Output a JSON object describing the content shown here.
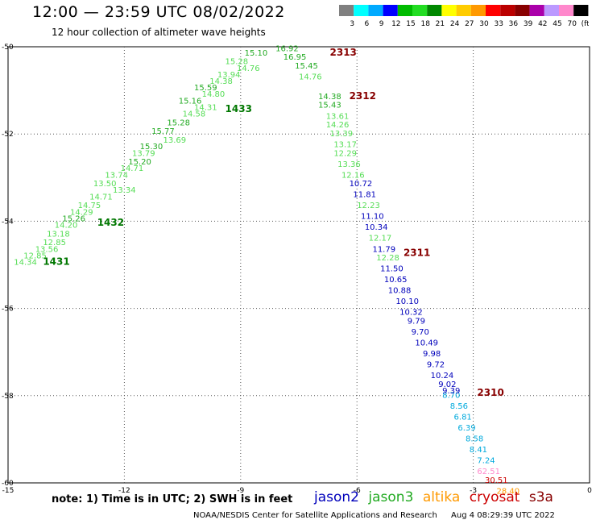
{
  "header": {
    "title": "12:00 — 23:59 UTC 08/02/2022",
    "subtitle": "12 hour collection of altimeter wave heights"
  },
  "colorbar": {
    "colors": [
      "#808080",
      "#00ffff",
      "#00aaff",
      "#0000ff",
      "#00bb00",
      "#22dd22",
      "#008800",
      "#ffff00",
      "#ffcc00",
      "#ff9900",
      "#ff0000",
      "#bb0000",
      "#880000",
      "#aa00aa",
      "#bb99ff",
      "#ff88cc",
      "#000000"
    ],
    "labels": [
      "3",
      "6",
      "9",
      "12",
      "15",
      "18",
      "21",
      "24",
      "27",
      "30",
      "33",
      "36",
      "39",
      "42",
      "45",
      "70",
      "(ft)"
    ]
  },
  "axes": {
    "y_labels": [
      "-50",
      "-52",
      "-54",
      "-56",
      "-58",
      "-60"
    ],
    "x_labels": [
      "-15",
      "-12",
      "-9",
      "-6",
      "-3",
      "0"
    ]
  },
  "colors": {
    "jason2": "#0000bb",
    "jason3": "#22aa22",
    "jason3_light": "#55dd55",
    "altika": "#ff9900",
    "cryosat": "#cc0000",
    "s3a": "#880000",
    "cyan": "#00aadd",
    "pink": "#ff88cc",
    "track_green": "#007700"
  },
  "chart_data": {
    "type": "scatter",
    "x_unit": "degrees longitude",
    "y_unit": "degrees latitude",
    "xlim": [
      -15,
      0
    ],
    "ylim": [
      -60,
      -50
    ],
    "track_labels": [
      {
        "text": "2313",
        "x": -6.7,
        "y": -50.2,
        "color": "s3a"
      },
      {
        "text": "2312",
        "x": -6.2,
        "y": -51.2,
        "color": "s3a"
      },
      {
        "text": "2311",
        "x": -4.8,
        "y": -54.8,
        "color": "s3a"
      },
      {
        "text": "2310",
        "x": -2.9,
        "y": -58.0,
        "color": "s3a"
      },
      {
        "text": "1433",
        "x": -9.4,
        "y": -51.5,
        "color": "track_green"
      },
      {
        "text": "1432",
        "x": -12.7,
        "y": -54.1,
        "color": "track_green"
      },
      {
        "text": "1431",
        "x": -14.1,
        "y": -55.0,
        "color": "track_green"
      }
    ],
    "points": [
      {
        "v": "15.10",
        "x": -8.9,
        "y": -50.2,
        "c": "jason3"
      },
      {
        "v": "16.92",
        "x": -8.1,
        "y": -50.1,
        "c": "jason3"
      },
      {
        "v": "15.28",
        "x": -9.4,
        "y": -50.4,
        "c": "jason3_light"
      },
      {
        "v": "16.95",
        "x": -7.9,
        "y": -50.3,
        "c": "jason3"
      },
      {
        "v": "14.76",
        "x": -9.1,
        "y": -50.55,
        "c": "jason3_light"
      },
      {
        "v": "15.45",
        "x": -7.6,
        "y": -50.5,
        "c": "jason3"
      },
      {
        "v": "13.94",
        "x": -9.6,
        "y": -50.7,
        "c": "jason3_light"
      },
      {
        "v": "14.76",
        "x": -7.5,
        "y": -50.75,
        "c": "jason3_light"
      },
      {
        "v": "14.38",
        "x": -9.8,
        "y": -50.85,
        "c": "jason3_light"
      },
      {
        "v": "15.59",
        "x": -10.2,
        "y": -51.0,
        "c": "jason3"
      },
      {
        "v": "14.80",
        "x": -10.0,
        "y": -51.15,
        "c": "jason3_light"
      },
      {
        "v": "14.38",
        "x": -7.0,
        "y": -51.2,
        "c": "jason3"
      },
      {
        "v": "15.16",
        "x": -10.6,
        "y": -51.3,
        "c": "jason3"
      },
      {
        "v": "15.43",
        "x": -7.0,
        "y": -51.4,
        "c": "jason3"
      },
      {
        "v": "14.31",
        "x": -10.2,
        "y": -51.45,
        "c": "jason3_light"
      },
      {
        "v": "14.58",
        "x": -10.5,
        "y": -51.6,
        "c": "jason3_light"
      },
      {
        "v": "13.61",
        "x": -6.8,
        "y": -51.65,
        "c": "jason3_light"
      },
      {
        "v": "15.28",
        "x": -10.9,
        "y": -51.8,
        "c": "jason3"
      },
      {
        "v": "14.26",
        "x": -6.8,
        "y": -51.85,
        "c": "jason3_light"
      },
      {
        "v": "15.77",
        "x": -11.3,
        "y": -52.0,
        "c": "jason3"
      },
      {
        "v": "13.39",
        "x": -6.7,
        "y": -52.05,
        "c": "jason3_light"
      },
      {
        "v": "13.69",
        "x": -11.0,
        "y": -52.2,
        "c": "jason3_light"
      },
      {
        "v": "13.17",
        "x": -6.6,
        "y": -52.3,
        "c": "jason3_light"
      },
      {
        "v": "15.30",
        "x": -11.6,
        "y": -52.35,
        "c": "jason3"
      },
      {
        "v": "13.79",
        "x": -11.8,
        "y": -52.5,
        "c": "jason3_light"
      },
      {
        "v": "12.29",
        "x": -6.6,
        "y": -52.5,
        "c": "jason3_light"
      },
      {
        "v": "15.20",
        "x": -11.9,
        "y": -52.7,
        "c": "jason3"
      },
      {
        "v": "13.36",
        "x": -6.5,
        "y": -52.75,
        "c": "jason3_light"
      },
      {
        "v": "14.71",
        "x": -12.1,
        "y": -52.85,
        "c": "jason3_light"
      },
      {
        "v": "12.16",
        "x": -6.4,
        "y": -53.0,
        "c": "jason3_light"
      },
      {
        "v": "13.74",
        "x": -12.5,
        "y": -53.0,
        "c": "jason3_light"
      },
      {
        "v": "13.50",
        "x": -12.8,
        "y": -53.2,
        "c": "jason3_light"
      },
      {
        "v": "10.72",
        "x": -6.2,
        "y": -53.2,
        "c": "jason2"
      },
      {
        "v": "13.34",
        "x": -12.3,
        "y": -53.35,
        "c": "jason3_light"
      },
      {
        "v": "11.81",
        "x": -6.1,
        "y": -53.45,
        "c": "jason2"
      },
      {
        "v": "14.71",
        "x": -12.9,
        "y": -53.5,
        "c": "jason3_light"
      },
      {
        "v": "12.23",
        "x": -6.0,
        "y": -53.7,
        "c": "jason3_light"
      },
      {
        "v": "14.75",
        "x": -13.2,
        "y": -53.7,
        "c": "jason3_light"
      },
      {
        "v": "14.29",
        "x": -13.4,
        "y": -53.85,
        "c": "jason3_light"
      },
      {
        "v": "11.10",
        "x": -5.9,
        "y": -53.95,
        "c": "jason2"
      },
      {
        "v": "15.26",
        "x": -13.6,
        "y": -54.0,
        "c": "jason3"
      },
      {
        "v": "14.20",
        "x": -13.8,
        "y": -54.15,
        "c": "jason3_light"
      },
      {
        "v": "10.34",
        "x": -5.8,
        "y": -54.2,
        "c": "jason2"
      },
      {
        "v": "13.18",
        "x": -14.0,
        "y": -54.35,
        "c": "jason3_light"
      },
      {
        "v": "12.17",
        "x": -5.7,
        "y": -54.45,
        "c": "jason3_light"
      },
      {
        "v": "12.85",
        "x": -14.1,
        "y": -54.55,
        "c": "jason3_light"
      },
      {
        "v": "11.79",
        "x": -5.6,
        "y": -54.7,
        "c": "jason2"
      },
      {
        "v": "13.56",
        "x": -14.3,
        "y": -54.7,
        "c": "jason3_light"
      },
      {
        "v": "12.85",
        "x": -14.6,
        "y": -54.85,
        "c": "jason3_light"
      },
      {
        "v": "12.28",
        "x": -5.5,
        "y": -54.9,
        "c": "jason3_light"
      },
      {
        "v": "14.34",
        "x": -14.85,
        "y": -55.0,
        "c": "jason3_light"
      },
      {
        "v": "11.50",
        "x": -5.4,
        "y": -55.15,
        "c": "jason2"
      },
      {
        "v": "10.65",
        "x": -5.3,
        "y": -55.4,
        "c": "jason2"
      },
      {
        "v": "10.88",
        "x": -5.2,
        "y": -55.65,
        "c": "jason2"
      },
      {
        "v": "10.10",
        "x": -5.0,
        "y": -55.9,
        "c": "jason2"
      },
      {
        "v": "10.32",
        "x": -4.9,
        "y": -56.15,
        "c": "jason2"
      },
      {
        "v": "9.79",
        "x": -4.7,
        "y": -56.35,
        "c": "jason2"
      },
      {
        "v": "9.70",
        "x": -4.6,
        "y": -56.6,
        "c": "jason2"
      },
      {
        "v": "10.49",
        "x": -4.5,
        "y": -56.85,
        "c": "jason2"
      },
      {
        "v": "9.98",
        "x": -4.3,
        "y": -57.1,
        "c": "jason2"
      },
      {
        "v": "9.72",
        "x": -4.2,
        "y": -57.35,
        "c": "jason2"
      },
      {
        "v": "10.24",
        "x": -4.1,
        "y": -57.6,
        "c": "jason2"
      },
      {
        "v": "9.02",
        "x": -3.9,
        "y": -57.8,
        "c": "jason2"
      },
      {
        "v": "8.70",
        "x": -3.8,
        "y": -58.05,
        "c": "cyan"
      },
      {
        "v": "9.39",
        "x": -3.8,
        "y": -57.95,
        "c": "jason2"
      },
      {
        "v": "8.56",
        "x": -3.6,
        "y": -58.3,
        "c": "cyan"
      },
      {
        "v": "6.81",
        "x": -3.5,
        "y": -58.55,
        "c": "cyan"
      },
      {
        "v": "6.39",
        "x": -3.4,
        "y": -58.8,
        "c": "cyan"
      },
      {
        "v": "8.58",
        "x": -3.2,
        "y": -59.05,
        "c": "cyan"
      },
      {
        "v": "8.41",
        "x": -3.1,
        "y": -59.3,
        "c": "cyan"
      },
      {
        "v": "7.24",
        "x": -2.9,
        "y": -59.55,
        "c": "cyan"
      },
      {
        "v": "62.51",
        "x": -2.9,
        "y": -59.8,
        "c": "pink"
      },
      {
        "v": "30.51",
        "x": -2.7,
        "y": -60.0,
        "c": "cryosat"
      },
      {
        "v": "28.40",
        "x": -2.4,
        "y": -60.25,
        "c": "altika"
      }
    ]
  },
  "note": "note:  1) Time is in UTC;  2) SWH is in feet",
  "legend": {
    "jason2": "jason2",
    "jason3": "jason3",
    "altika": "altika",
    "cryosat": "cryosat",
    "s3a": "s3a"
  },
  "footer": {
    "center": "NOAA/NESDIS Center for Satellite Applications and Research",
    "date": "Aug  4 08:29:39 UTC 2022"
  }
}
